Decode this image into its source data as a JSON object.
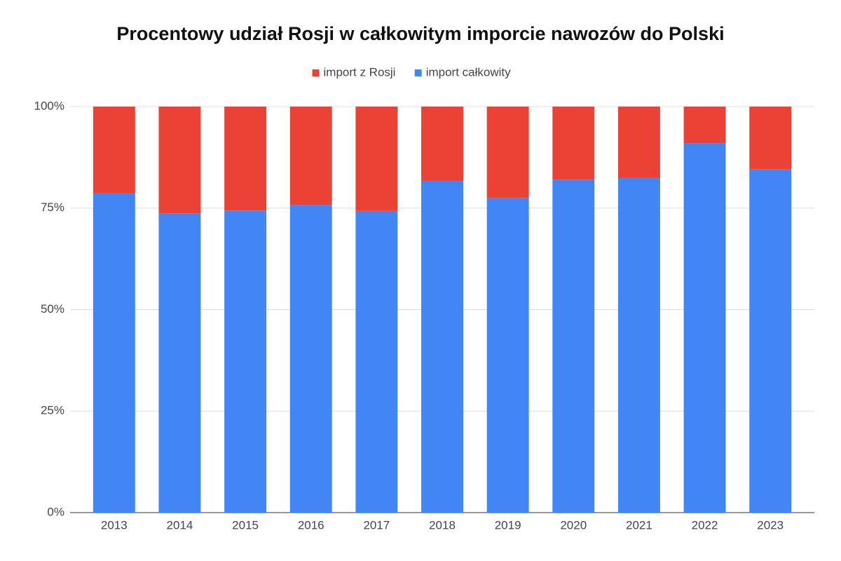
{
  "chart_data": {
    "type": "stacked_bar_100",
    "title": "Procentowy udział Rosji w całkowitym imporcie nawozów do Polski",
    "categories": [
      "2013",
      "2014",
      "2015",
      "2016",
      "2017",
      "2018",
      "2019",
      "2020",
      "2021",
      "2022",
      "2023"
    ],
    "series": [
      {
        "name": "import z Rosji",
        "color": "#ea4335",
        "values": [
          21.4,
          26.3,
          25.6,
          24.2,
          25.7,
          18.3,
          22.5,
          18.0,
          17.6,
          9.0,
          15.4
        ]
      },
      {
        "name": "import całkowity",
        "color": "#4285f4",
        "values": [
          78.6,
          73.7,
          74.4,
          75.8,
          74.3,
          81.7,
          77.5,
          82.0,
          82.4,
          91.0,
          84.6
        ]
      }
    ],
    "ylim": [
      0,
      100
    ],
    "yticks": [
      {
        "value": 0,
        "label": "0%"
      },
      {
        "value": 25,
        "label": "25%"
      },
      {
        "value": 50,
        "label": "50%"
      },
      {
        "value": 75,
        "label": "75%"
      },
      {
        "value": 100,
        "label": "100%"
      }
    ],
    "grid": true,
    "legend": "top"
  }
}
